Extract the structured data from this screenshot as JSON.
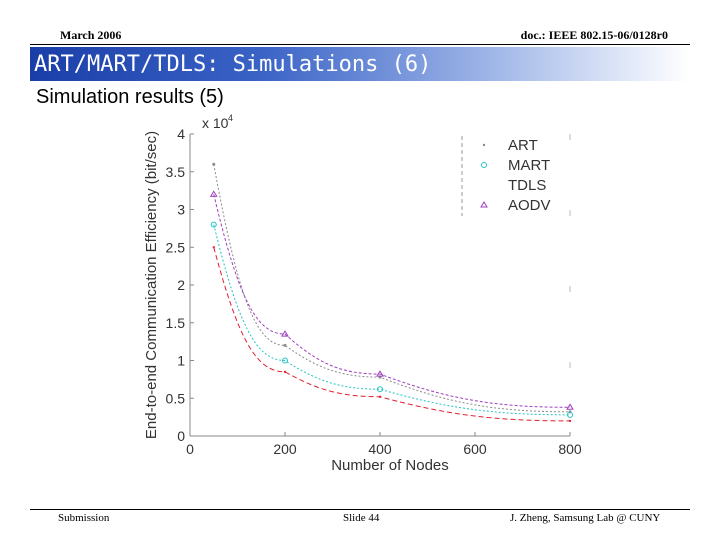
{
  "header": {
    "date": "March 2006",
    "doc": "doc.: IEEE 802.15-06/0128r0"
  },
  "slide": {
    "title": "ART/MART/TDLS: Simulations (6)",
    "subtitle": "Simulation results (5)"
  },
  "footer": {
    "left": "Submission",
    "center": "Slide 44",
    "right": "J. Zheng, Samsung Lab @ CUNY"
  },
  "colors": {
    "title_bar": "#1a3ea8",
    "art": "#8a8a8a",
    "mart": "#22c4c4",
    "tdls": "#e02030",
    "aodv": "#a040c0"
  },
  "chart_data": {
    "type": "line",
    "xlabel": "Number of Nodes",
    "ylabel": "End-to-end Communication Efficiency (bit/sec)",
    "y_multiplier": "x 10",
    "y_multiplier_exp": "4",
    "xlim": [
      0,
      800
    ],
    "ylim": [
      0,
      4
    ],
    "xticks": [
      0,
      200,
      400,
      600,
      800
    ],
    "xtick_labels": [
      "0",
      "200",
      "400",
      "600",
      "800"
    ],
    "yticks": [
      0,
      0.5,
      1,
      1.5,
      2,
      2.5,
      3,
      3.5,
      4
    ],
    "ytick_labels": [
      "0",
      "0.5",
      "1",
      "1.5",
      "2",
      "2.5",
      "3",
      "3.5",
      "4"
    ],
    "x": [
      50,
      200,
      400,
      800
    ],
    "legend_position": "top-right",
    "grid": false,
    "series": [
      {
        "name": "ART",
        "color": "#8a8a8a",
        "values": [
          3.6,
          1.2,
          0.78,
          0.32
        ]
      },
      {
        "name": "MART",
        "color": "#22c4c4",
        "values": [
          2.8,
          1.0,
          0.62,
          0.28
        ]
      },
      {
        "name": "TDLS",
        "color": "#e02030",
        "values": [
          2.5,
          0.85,
          0.52,
          0.2
        ]
      },
      {
        "name": "AODV",
        "color": "#a040c0",
        "values": [
          3.2,
          1.35,
          0.82,
          0.38
        ]
      }
    ]
  }
}
